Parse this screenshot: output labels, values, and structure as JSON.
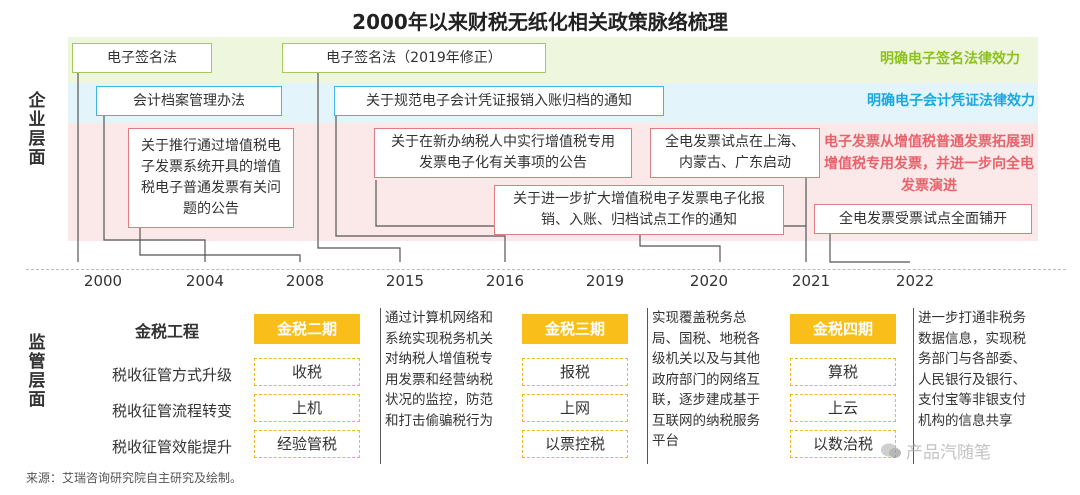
{
  "title": "2000年以来财税无纸化相关政策脉络梳理",
  "sections": {
    "enterprise": "企业层面",
    "regulatory": "监管层面"
  },
  "rows": {
    "green": {
      "boxes": [
        "电子签名法",
        "电子签名法（2019年修正）"
      ],
      "note": "明确电子签名法律效力",
      "note_color": "#8dc21f"
    },
    "blue": {
      "boxes": [
        "会计档案管理办法",
        "关于规范电子会计凭证报销入账归档的通知"
      ],
      "note": "明确电子会计凭证法律效力",
      "note_color": "#1ca8dd"
    },
    "red": {
      "boxes": [
        "关于推行通过增值税电子发票系统开具的增值税电子普通发票有关问题的公告",
        "关于在新办纳税人中实行增值税专用发票电子化有关事项的公告",
        "全电发票试点在上海、内蒙古、广东启动",
        "关于进一步扩大增值税电子发票电子化报销、入账、归档试点工作的通知",
        "全电发票受票试点全面铺开"
      ],
      "note": "电子发票从增值税普通发票拓展到增值税专用发票，并进一步向全电发票演进",
      "note_color": "#e8626b"
    }
  },
  "years": [
    "2000",
    "2004",
    "2008",
    "2015",
    "2016",
    "2019",
    "2020",
    "2021",
    "2022"
  ],
  "regulatory": {
    "project_title": "金税工程",
    "row_labels": [
      "税收征管方式升级",
      "税收征管流程转变",
      "税收征管效能提升"
    ],
    "phases": [
      {
        "name": "金税二期",
        "items": [
          "收税",
          "上机",
          "经验管税"
        ],
        "description": "通过计算机网络和系统实现税务机关对纳税人增值税专用发票和经营纳税状况的监控，防范和打击偷骗税行为"
      },
      {
        "name": "金税三期",
        "items": [
          "报税",
          "上网",
          "以票控税"
        ],
        "description": "实现覆盖税务总局、国税、地税各级机关以及与其他政府部门的网络互联，逐步建成基于互联网的纳税服务平台"
      },
      {
        "name": "金税四期",
        "items": [
          "算税",
          "上云",
          "以数治税"
        ],
        "description": "进一步打通非税务数据信息，实现税务部门与各部委、人民银行及银行、支付宝等非银支付机构的信息共享"
      }
    ],
    "phase_color": "#f9be1a"
  },
  "source": "来源：艾瑞咨询研究院自主研究及绘制。",
  "watermark": "产品汽随笔"
}
